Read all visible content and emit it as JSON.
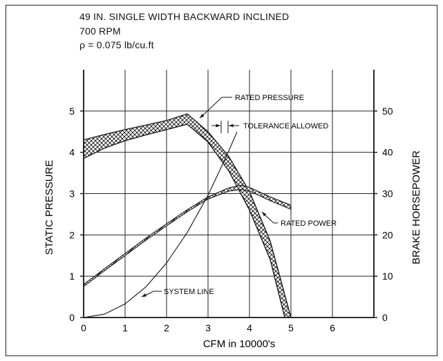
{
  "header": {
    "title": "49 IN. SINGLE WIDTH BACKWARD INCLINED",
    "speed": "700 RPM",
    "density": "ρ = 0.075 lb/cu.ft"
  },
  "chart_data": {
    "type": "line",
    "xlabel": "CFM in 10000's",
    "ylabel_left": "STATIC PRESSURE",
    "ylabel_right": "BRAKE HORSEPOWER",
    "xlim": [
      0,
      7
    ],
    "ylim_left": [
      0,
      6
    ],
    "ylim_right": [
      0,
      60
    ],
    "x_ticks": [
      "0",
      "1",
      "2",
      "3",
      "4",
      "5",
      "6"
    ],
    "y_ticks_left": [
      "0",
      "1",
      "2",
      "3",
      "4",
      "5"
    ],
    "y_ticks_right": [
      "0",
      "10",
      "20",
      "30",
      "40",
      "50"
    ],
    "grid": true,
    "annotations": {
      "rated_pressure": "RATED PRESSURE",
      "tolerance": "TOLERANCE ALLOWED",
      "rated_power": "RATED POWER",
      "system_line": "SYSTEM LINE"
    },
    "pressure_band": {
      "upper": [
        [
          0,
          4.3
        ],
        [
          0.5,
          4.43
        ],
        [
          1,
          4.55
        ],
        [
          1.5,
          4.66
        ],
        [
          2,
          4.77
        ],
        [
          2.5,
          4.93
        ],
        [
          3,
          4.5
        ],
        [
          3.5,
          3.9
        ],
        [
          4,
          3.05
        ],
        [
          4.5,
          1.85
        ],
        [
          5,
          0
        ]
      ],
      "lower": [
        [
          0,
          3.85
        ],
        [
          0.5,
          4.1
        ],
        [
          1,
          4.28
        ],
        [
          1.5,
          4.42
        ],
        [
          2,
          4.55
        ],
        [
          2.5,
          4.68
        ],
        [
          3,
          4.25
        ],
        [
          3.5,
          3.55
        ],
        [
          4,
          2.6
        ],
        [
          4.5,
          1.4
        ],
        [
          4.85,
          0
        ]
      ]
    },
    "power_band": {
      "upper": [
        [
          0,
          8.0
        ],
        [
          0.5,
          11.8
        ],
        [
          1,
          15.5
        ],
        [
          1.5,
          19.2
        ],
        [
          2,
          22.7
        ],
        [
          2.5,
          26.1
        ],
        [
          3,
          29.2
        ],
        [
          3.5,
          31.4
        ],
        [
          3.8,
          32.0
        ],
        [
          4,
          31.5
        ],
        [
          4.5,
          29.2
        ],
        [
          5,
          27.2
        ]
      ],
      "lower": [
        [
          0,
          7.5
        ],
        [
          0.5,
          11.3
        ],
        [
          1,
          15.0
        ],
        [
          1.5,
          18.7
        ],
        [
          2,
          22.2
        ],
        [
          2.5,
          25.6
        ],
        [
          3,
          28.7
        ],
        [
          3.5,
          30.6
        ],
        [
          3.8,
          31.0
        ],
        [
          4,
          30.6
        ],
        [
          4.5,
          28.3
        ],
        [
          5,
          26.2
        ]
      ]
    },
    "system_line": [
      [
        0,
        0
      ],
      [
        0.5,
        0.08
      ],
      [
        1,
        0.33
      ],
      [
        1.5,
        0.74
      ],
      [
        2,
        1.32
      ],
      [
        2.5,
        2.06
      ],
      [
        3,
        2.96
      ],
      [
        3.5,
        4.03
      ],
      [
        3.7,
        4.5
      ]
    ]
  }
}
